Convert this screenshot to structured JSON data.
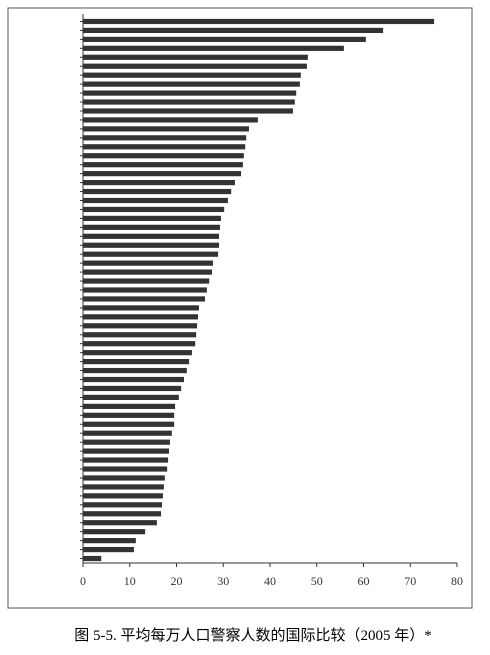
{
  "chart_data": {
    "type": "barh",
    "caption": "图 5-5. 平均每万人口警察人数的国际比较（2005 年）*",
    "categories": [
      null,
      null,
      null,
      null,
      null,
      null,
      null,
      null,
      null,
      null,
      null,
      null,
      null,
      null,
      null,
      null,
      null,
      null,
      null,
      null,
      null,
      null,
      null,
      null,
      null,
      null,
      null,
      null,
      null,
      null,
      null,
      null,
      null,
      null,
      null,
      null,
      null,
      null,
      null,
      null,
      null,
      null,
      null,
      null,
      null,
      null,
      null,
      null,
      null,
      null,
      null,
      null,
      null,
      null,
      null,
      null,
      null,
      null,
      null,
      null,
      null
    ],
    "values": [
      75.1,
      64.2,
      60.5,
      55.8,
      48.1,
      47.9,
      46.6,
      46.4,
      45.6,
      45.3,
      44.9,
      37.4,
      35.5,
      34.9,
      34.7,
      34.4,
      34.2,
      33.8,
      32.5,
      31.7,
      31.0,
      30.2,
      29.5,
      29.3,
      29.1,
      29.1,
      28.9,
      27.8,
      27.6,
      27.0,
      26.5,
      26.1,
      24.8,
      24.6,
      24.4,
      24.2,
      24.0,
      23.3,
      22.7,
      22.2,
      21.6,
      21.0,
      20.5,
      19.7,
      19.5,
      19.5,
      19.0,
      18.6,
      18.4,
      18.2,
      18.0,
      17.5,
      17.3,
      17.1,
      16.9,
      16.7,
      15.8,
      13.3,
      11.3,
      10.9,
      3.9
    ],
    "color": "#333333",
    "xlim": [
      0,
      80
    ],
    "xticks": [
      0,
      10,
      20,
      30,
      40,
      50,
      60,
      70,
      80
    ]
  }
}
